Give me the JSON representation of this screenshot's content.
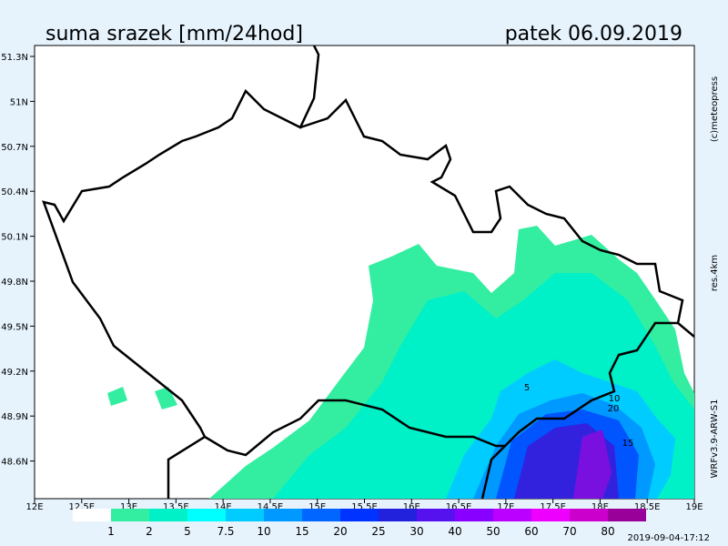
{
  "header": {
    "title": "suma srazek [mm/24hod]",
    "date": "patek 06.09.2019"
  },
  "axes": {
    "x_labels": [
      "12E",
      "12.5E",
      "13E",
      "13.5E",
      "14E",
      "14.5E",
      "15E",
      "15.5E",
      "16E",
      "16.5E",
      "17E",
      "17.5E",
      "18E",
      "18.5E",
      "19E"
    ],
    "y_labels": [
      "51.3N",
      "51N",
      "50.7N",
      "50.4N",
      "50.1N",
      "49.8N",
      "49.5N",
      "49.2N",
      "48.9N",
      "48.6N"
    ]
  },
  "legend": {
    "labels": [
      "1",
      "2",
      "5",
      "7.5",
      "10",
      "15",
      "20",
      "25",
      "30",
      "40",
      "50",
      "60",
      "70",
      "80"
    ]
  },
  "contour_labels": [
    "5",
    "10",
    "20",
    "15"
  ],
  "side_notes": {
    "copyright": "(c)meteopress",
    "resolution": "res.4km",
    "model": "WRFv3.9-ARW-S1",
    "run": "2019-09-04-17:12"
  }
}
